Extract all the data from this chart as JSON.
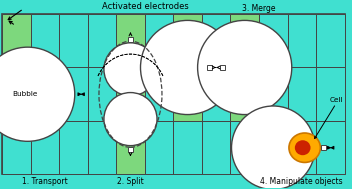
{
  "bg_color": "#40e0d0",
  "green_color": "#7dd87d",
  "bubble_color": "#ffffff",
  "edge_color": "#444444",
  "title_text": "Activated electrodes",
  "label1": "1. Transport",
  "label2": "2. Split",
  "label3": "3. Merge",
  "label4": "4. Manipulate objects",
  "bubble_label": "Bubble",
  "cell_label": "Cell",
  "orange_color": "#ffaa00",
  "orange_edge": "#cc7700",
  "red_color": "#cc2200",
  "fig_width": 3.52,
  "fig_height": 1.89,
  "dpi": 100
}
